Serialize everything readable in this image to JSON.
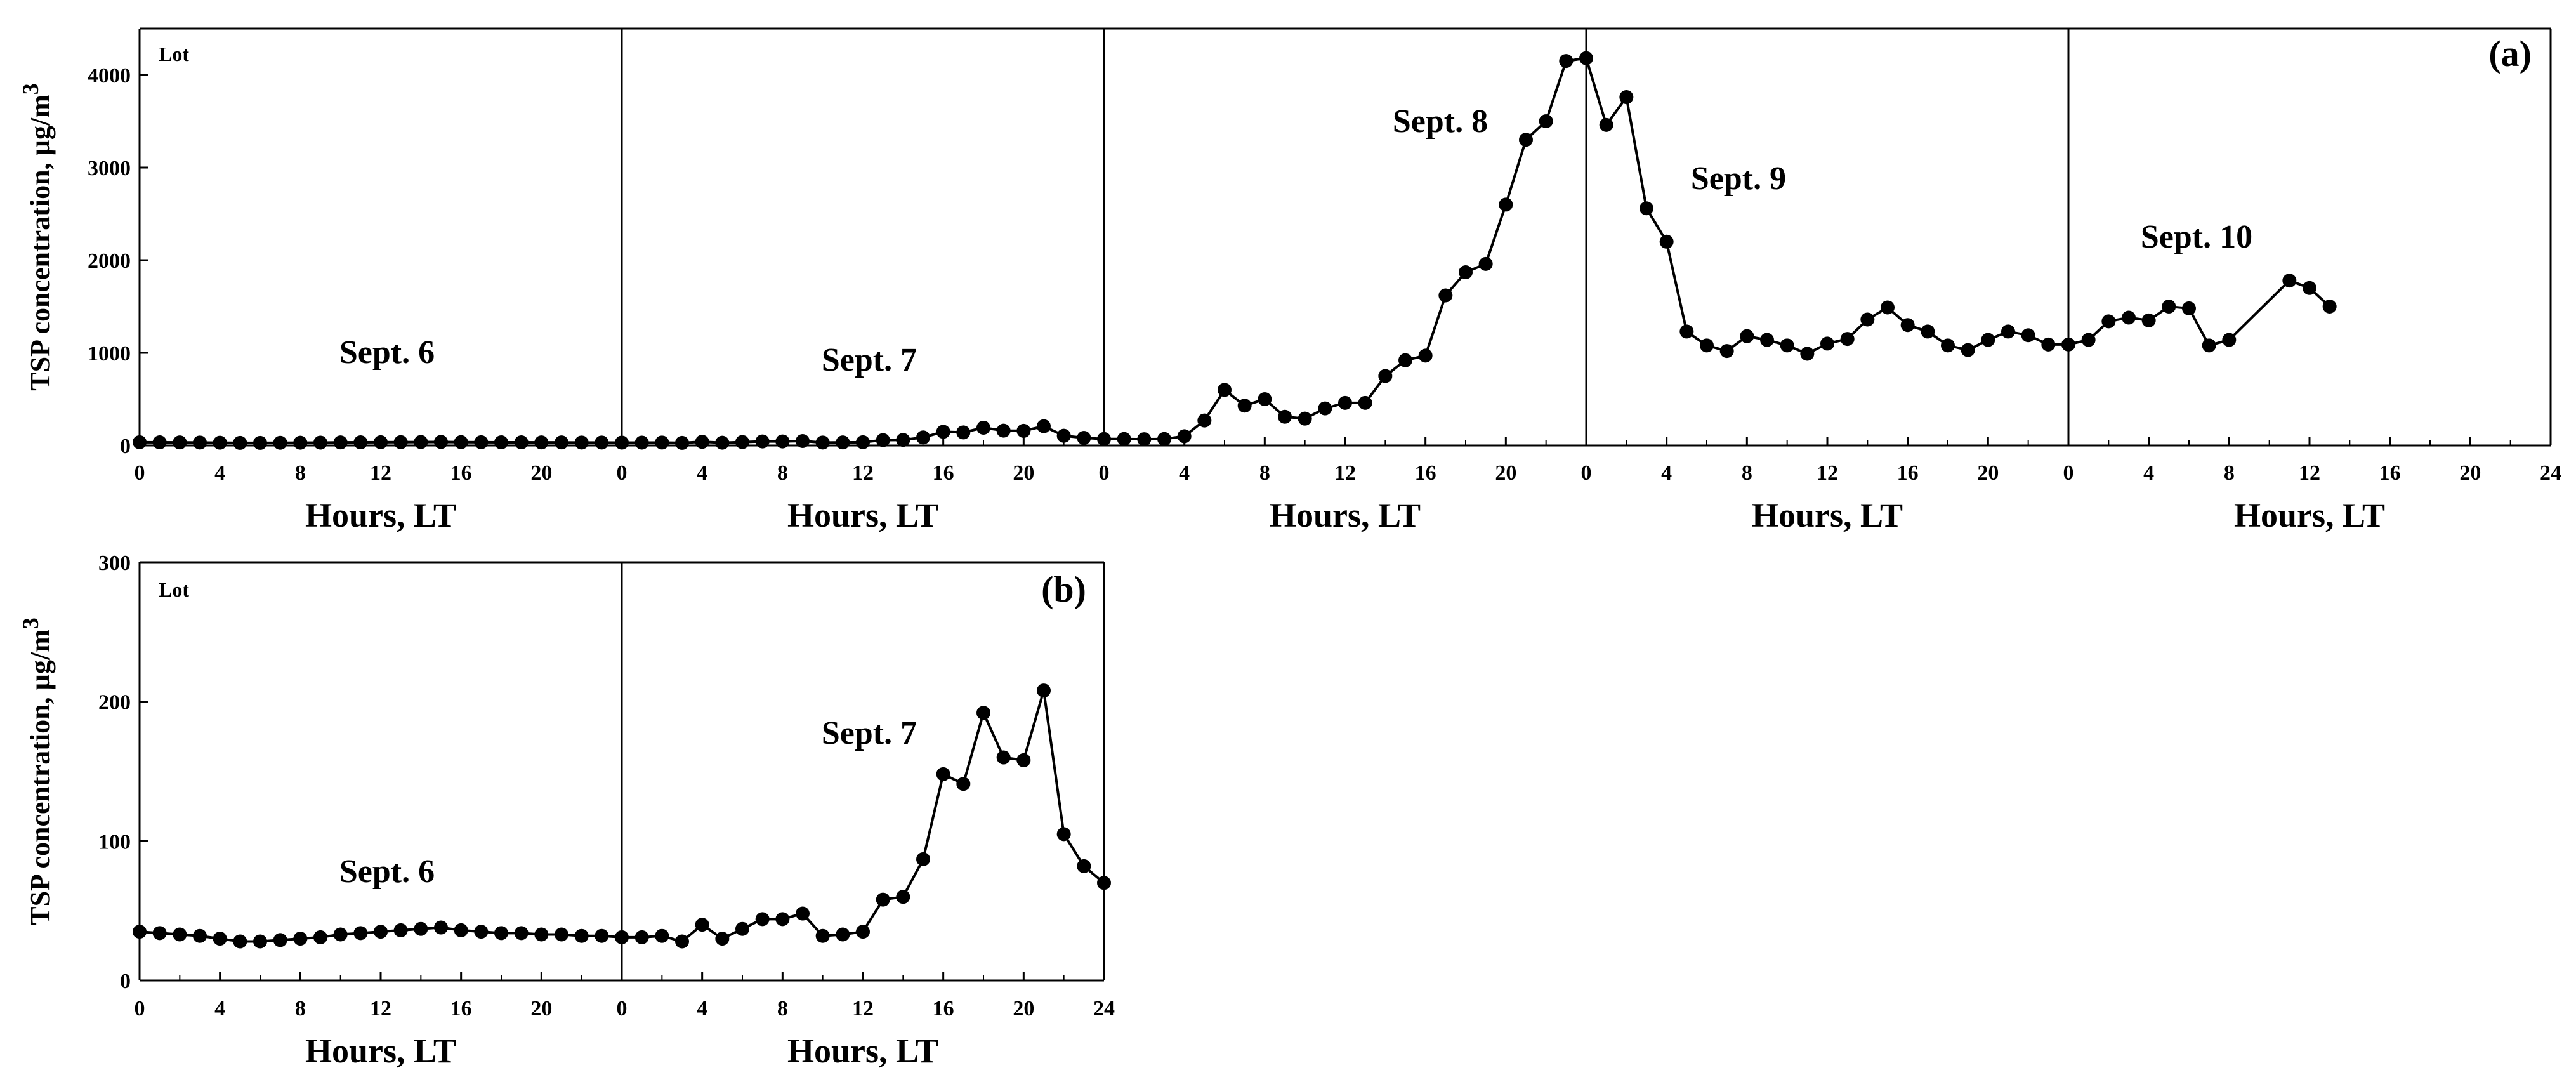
{
  "chart_data": [
    {
      "type": "line",
      "panel_label": "(a)",
      "site_label": "Lot",
      "ylabel": "TSP concentration, µg/m",
      "ylabel_sup": "3",
      "ylim": [
        0,
        4500
      ],
      "yticks": [
        "0",
        "1000",
        "2000",
        "3000",
        "4000"
      ],
      "xlabel": "Hours, LT",
      "xticks": [
        "0",
        "4",
        "8",
        "12",
        "16",
        "20"
      ],
      "xticks_last": [
        "0",
        "4",
        "8",
        "12",
        "16",
        "20",
        "24"
      ],
      "days": [
        {
          "label": "Sept. 6",
          "hours": [
            0,
            1,
            2,
            3,
            4,
            5,
            6,
            7,
            8,
            9,
            10,
            11,
            12,
            13,
            14,
            15,
            16,
            17,
            18,
            19,
            20,
            21,
            22,
            23
          ],
          "values": [
            35,
            34,
            33,
            32,
            30,
            28,
            28,
            29,
            30,
            31,
            33,
            34,
            35,
            36,
            37,
            38,
            36,
            35,
            34,
            34,
            33,
            33,
            32,
            32
          ]
        },
        {
          "label": "Sept. 7",
          "hours": [
            0,
            1,
            2,
            3,
            4,
            5,
            6,
            7,
            8,
            9,
            10,
            11,
            12,
            13,
            14,
            15,
            16,
            17,
            18,
            19,
            20,
            21,
            22,
            23
          ],
          "values": [
            31,
            31,
            32,
            28,
            40,
            30,
            37,
            44,
            44,
            48,
            32,
            33,
            35,
            58,
            60,
            87,
            148,
            141,
            192,
            160,
            158,
            208,
            105,
            82
          ]
        },
        {
          "label": "Sept. 8",
          "hours": [
            0,
            1,
            2,
            3,
            4,
            5,
            6,
            7,
            8,
            9,
            10,
            11,
            12,
            13,
            14,
            15,
            16,
            17,
            18,
            19,
            20,
            21,
            22,
            23
          ],
          "values": [
            70,
            70,
            68,
            70,
            100,
            270,
            600,
            430,
            500,
            310,
            290,
            400,
            460,
            460,
            750,
            920,
            970,
            1620,
            1870,
            1960,
            2600,
            3300,
            3500,
            4150
          ]
        },
        {
          "label": "Sept. 9",
          "hours": [
            0,
            1,
            2,
            3,
            4,
            5,
            6,
            7,
            8,
            9,
            10,
            11,
            12,
            13,
            14,
            15,
            16,
            17,
            18,
            19,
            20,
            21,
            22,
            23
          ],
          "values": [
            4180,
            3460,
            3760,
            2560,
            2200,
            1230,
            1080,
            1020,
            1180,
            1140,
            1080,
            990,
            1100,
            1150,
            1360,
            1490,
            1300,
            1230,
            1080,
            1030,
            1140,
            1230,
            1190,
            1090
          ]
        },
        {
          "label": "Sept. 10",
          "hours": [
            0,
            1,
            2,
            3,
            4,
            5,
            6,
            7,
            8,
            11,
            12,
            13
          ],
          "values": [
            1090,
            1140,
            1340,
            1380,
            1350,
            1500,
            1480,
            1080,
            1140,
            1780,
            1700,
            1500
          ]
        }
      ]
    },
    {
      "type": "line",
      "panel_label": "(b)",
      "site_label": "Lot",
      "ylabel": "TSP concentration, µg/m",
      "ylabel_sup": "3",
      "ylim": [
        0,
        300
      ],
      "yticks": [
        "0",
        "100",
        "200",
        "300"
      ],
      "xlabel": "Hours, LT",
      "xticks": [
        "0",
        "4",
        "8",
        "12",
        "16",
        "20"
      ],
      "xticks_last": [
        "0",
        "4",
        "8",
        "12",
        "16",
        "20",
        "24"
      ],
      "days": [
        {
          "label": "Sept. 6",
          "hours": [
            0,
            1,
            2,
            3,
            4,
            5,
            6,
            7,
            8,
            9,
            10,
            11,
            12,
            13,
            14,
            15,
            16,
            17,
            18,
            19,
            20,
            21,
            22,
            23
          ],
          "values": [
            35,
            34,
            33,
            32,
            30,
            28,
            28,
            29,
            30,
            31,
            33,
            34,
            35,
            36,
            37,
            38,
            36,
            35,
            34,
            34,
            33,
            33,
            32,
            32
          ]
        },
        {
          "label": "Sept. 7",
          "hours": [
            0,
            1,
            2,
            3,
            4,
            5,
            6,
            7,
            8,
            9,
            10,
            11,
            12,
            13,
            14,
            15,
            16,
            17,
            18,
            19,
            20,
            21,
            22,
            23,
            24
          ],
          "values": [
            31,
            31,
            32,
            28,
            40,
            30,
            37,
            44,
            44,
            48,
            32,
            33,
            35,
            58,
            60,
            87,
            148,
            141,
            192,
            160,
            158,
            208,
            105,
            82,
            70
          ]
        }
      ]
    }
  ]
}
